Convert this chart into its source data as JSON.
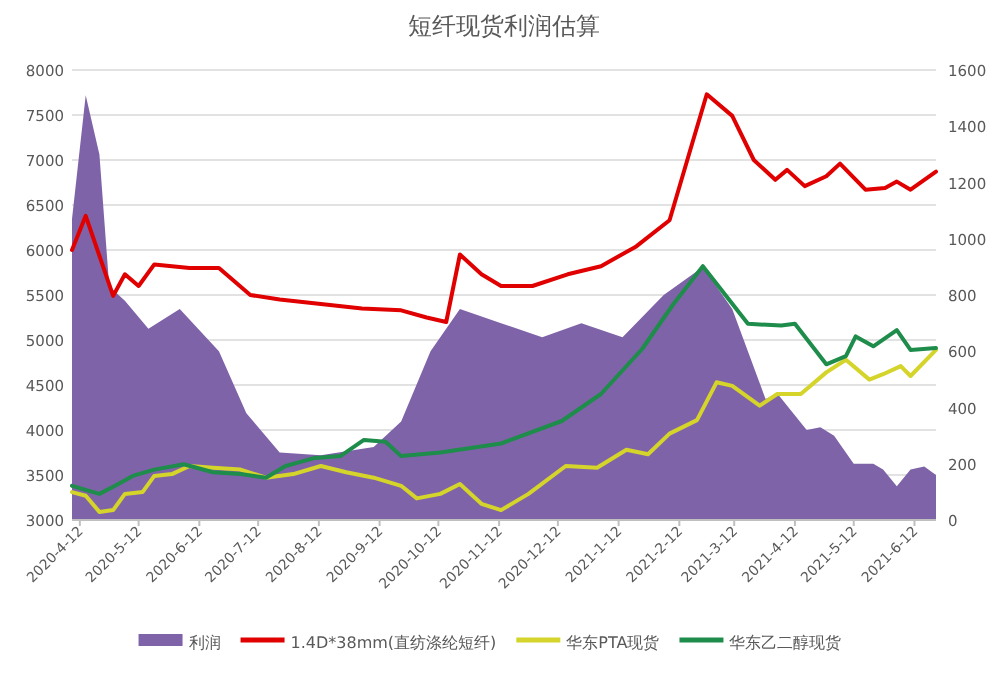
{
  "chart_data": {
    "type": "line",
    "title": "短纤现货利润估算",
    "xlim": [
      "2020-04-08",
      "2021-06-23"
    ],
    "xticks": [
      {
        "value": "2020-04-12",
        "label": "2020-4-12"
      },
      {
        "value": "2020-05-12",
        "label": "2020-5-12"
      },
      {
        "value": "2020-06-12",
        "label": "2020-6-12"
      },
      {
        "value": "2020-07-12",
        "label": "2020-7-12"
      },
      {
        "value": "2020-08-12",
        "label": "2020-8-12"
      },
      {
        "value": "2020-09-12",
        "label": "2020-9-12"
      },
      {
        "value": "2020-10-12",
        "label": "2020-10-12"
      },
      {
        "value": "2020-11-12",
        "label": "2020-11-12"
      },
      {
        "value": "2020-12-12",
        "label": "2020-12-12"
      },
      {
        "value": "2021-01-12",
        "label": "2021-1-12"
      },
      {
        "value": "2021-02-12",
        "label": "2021-2-12"
      },
      {
        "value": "2021-03-12",
        "label": "2021-3-12"
      },
      {
        "value": "2021-04-12",
        "label": "2021-4-12"
      },
      {
        "value": "2021-05-12",
        "label": "2021-5-12"
      },
      {
        "value": "2021-06-12",
        "label": "2021-6-12"
      }
    ],
    "ylim": [
      3000,
      8000
    ],
    "yticks": [
      3000,
      3500,
      4000,
      4500,
      5000,
      5500,
      6000,
      6500,
      7000,
      7500,
      8000
    ],
    "y2lim": [
      0,
      1600
    ],
    "y2ticks": [
      0,
      200,
      400,
      600,
      800,
      1000,
      1200,
      1400,
      1600
    ],
    "grid": "y",
    "legend": "bottom",
    "marker": "none",
    "line_style": "solid",
    "series": [
      {
        "name": "利润",
        "type": "area",
        "axis": "y2",
        "color": "#7f63a8",
        "x": [
          "2020-04-08",
          "2020-04-15",
          "2020-04-22",
          "2020-04-27",
          "2020-05-05",
          "2020-05-17",
          "2020-06-02",
          "2020-06-22",
          "2020-07-06",
          "2020-07-23",
          "2020-08-13",
          "2020-09-09",
          "2020-09-23",
          "2020-10-08",
          "2020-10-23",
          "2020-11-13",
          "2020-12-04",
          "2020-12-24",
          "2021-01-14",
          "2021-02-04",
          "2021-02-24",
          "2021-03-11",
          "2021-03-28",
          "2021-04-03",
          "2021-04-18",
          "2021-04-25",
          "2021-05-02",
          "2021-05-12",
          "2021-05-22",
          "2021-05-27",
          "2021-06-03",
          "2021-06-10",
          "2021-06-17",
          "2021-06-23"
        ],
        "values": [
          1070,
          1510,
          1300,
          830,
          780,
          680,
          750,
          600,
          380,
          240,
          230,
          260,
          350,
          600,
          750,
          700,
          650,
          700,
          650,
          800,
          900,
          750,
          430,
          450,
          320,
          330,
          300,
          200,
          200,
          180,
          120,
          180,
          190,
          160
        ]
      },
      {
        "name": "1.4D*38mm(直纺涤纶短纤)",
        "color": "#e00000",
        "x": [
          "2020-04-08",
          "2020-04-15",
          "2020-04-29",
          "2020-05-05",
          "2020-05-12",
          "2020-05-20",
          "2020-06-07",
          "2020-06-22",
          "2020-07-08",
          "2020-07-23",
          "2020-08-13",
          "2020-09-03",
          "2020-09-23",
          "2020-10-06",
          "2020-10-16",
          "2020-10-23",
          "2020-11-03",
          "2020-11-13",
          "2020-11-29",
          "2020-12-17",
          "2021-01-03",
          "2021-01-21",
          "2021-02-07",
          "2021-02-17",
          "2021-02-26",
          "2021-03-11",
          "2021-03-22",
          "2021-04-02",
          "2021-04-08",
          "2021-04-17",
          "2021-04-28",
          "2021-05-05",
          "2021-05-18",
          "2021-05-28",
          "2021-06-03",
          "2021-06-10",
          "2021-06-23"
        ],
        "values": [
          6000,
          6380,
          5490,
          5730,
          5600,
          5840,
          5800,
          5800,
          5500,
          5450,
          5400,
          5350,
          5330,
          5250,
          5200,
          5950,
          5730,
          5600,
          5600,
          5730,
          5820,
          6040,
          6330,
          7070,
          7730,
          7490,
          7000,
          6780,
          6890,
          6710,
          6820,
          6960,
          6670,
          6690,
          6760,
          6670,
          6870
        ]
      },
      {
        "name": "华东PTA现货",
        "color": "#d4d42a",
        "x": [
          "2020-04-08",
          "2020-04-15",
          "2020-04-22",
          "2020-04-29",
          "2020-05-05",
          "2020-05-14",
          "2020-05-20",
          "2020-05-29",
          "2020-06-07",
          "2020-06-19",
          "2020-07-03",
          "2020-07-16",
          "2020-07-30",
          "2020-08-13",
          "2020-08-26",
          "2020-09-09",
          "2020-09-23",
          "2020-10-01",
          "2020-10-13",
          "2020-10-23",
          "2020-11-03",
          "2020-11-13",
          "2020-11-27",
          "2020-12-16",
          "2021-01-01",
          "2021-01-16",
          "2021-01-27",
          "2021-02-07",
          "2021-02-21",
          "2021-03-03",
          "2021-03-11",
          "2021-03-25",
          "2021-04-03",
          "2021-04-15",
          "2021-04-28",
          "2021-05-08",
          "2021-05-20",
          "2021-05-27",
          "2021-06-05",
          "2021-06-10",
          "2021-06-23"
        ],
        "values": [
          3310,
          3270,
          3090,
          3110,
          3290,
          3310,
          3490,
          3510,
          3600,
          3580,
          3560,
          3470,
          3510,
          3600,
          3530,
          3470,
          3380,
          3240,
          3290,
          3400,
          3180,
          3110,
          3290,
          3600,
          3580,
          3780,
          3730,
          3960,
          4110,
          4530,
          4490,
          4270,
          4400,
          4400,
          4640,
          4780,
          4560,
          4620,
          4710,
          4600,
          4890
        ]
      },
      {
        "name": "华东乙二醇现货",
        "color": "#1e8c4a",
        "x": [
          "2020-04-08",
          "2020-04-22",
          "2020-04-30",
          "2020-05-09",
          "2020-05-20",
          "2020-06-04",
          "2020-06-19",
          "2020-07-03",
          "2020-07-16",
          "2020-07-26",
          "2020-08-10",
          "2020-08-23",
          "2020-09-04",
          "2020-09-15",
          "2020-09-23",
          "2020-10-13",
          "2020-11-13",
          "2020-12-14",
          "2021-01-03",
          "2021-01-24",
          "2021-02-09",
          "2021-02-24",
          "2021-03-19",
          "2021-04-05",
          "2021-04-12",
          "2021-04-28",
          "2021-05-08",
          "2021-05-13",
          "2021-05-22",
          "2021-06-03",
          "2021-06-10",
          "2021-06-23"
        ],
        "values": [
          3380,
          3290,
          3380,
          3490,
          3560,
          3620,
          3530,
          3510,
          3470,
          3600,
          3690,
          3710,
          3890,
          3870,
          3710,
          3750,
          3850,
          4100,
          4400,
          4900,
          5400,
          5820,
          5180,
          5160,
          5180,
          4730,
          4820,
          5040,
          4930,
          5110,
          4890,
          4910
        ]
      }
    ]
  }
}
